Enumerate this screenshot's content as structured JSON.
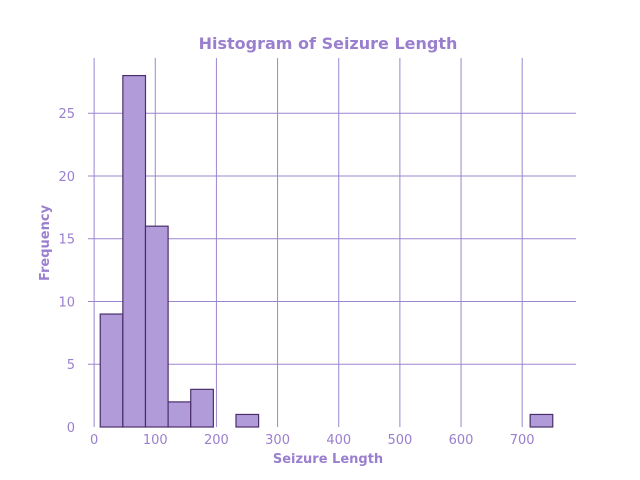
{
  "chart_data": {
    "type": "bar",
    "title": "Histogram of Seizure Length",
    "xlabel": "Seizure Length",
    "ylabel": "Frequency",
    "xlim": [
      -10,
      788
    ],
    "ylim": [
      0,
      29.4
    ],
    "xticks": [
      0,
      100,
      200,
      300,
      400,
      500,
      600,
      700
    ],
    "yticks": [
      0,
      5,
      10,
      15,
      20,
      25
    ],
    "grid": true,
    "bins": [
      {
        "start": 10,
        "end": 47,
        "count": 9
      },
      {
        "start": 47,
        "end": 84,
        "count": 28
      },
      {
        "start": 84,
        "end": 121,
        "count": 16
      },
      {
        "start": 121,
        "end": 158,
        "count": 2
      },
      {
        "start": 158,
        "end": 195,
        "count": 3
      },
      {
        "start": 195,
        "end": 232,
        "count": 0
      },
      {
        "start": 232,
        "end": 269,
        "count": 1
      },
      {
        "start": 269,
        "end": 306,
        "count": 0
      },
      {
        "start": 306,
        "end": 343,
        "count": 0
      },
      {
        "start": 343,
        "end": 380,
        "count": 0
      },
      {
        "start": 380,
        "end": 417,
        "count": 0
      },
      {
        "start": 417,
        "end": 454,
        "count": 0
      },
      {
        "start": 454,
        "end": 491,
        "count": 0
      },
      {
        "start": 491,
        "end": 528,
        "count": 0
      },
      {
        "start": 528,
        "end": 565,
        "count": 0
      },
      {
        "start": 565,
        "end": 602,
        "count": 0
      },
      {
        "start": 602,
        "end": 639,
        "count": 0
      },
      {
        "start": 639,
        "end": 676,
        "count": 0
      },
      {
        "start": 676,
        "end": 713,
        "count": 0
      },
      {
        "start": 713,
        "end": 750,
        "count": 1
      }
    ],
    "colors": {
      "bar_fill": "#b19cd9",
      "bar_edge": "#4b2e6b",
      "grid": "#9b86cf",
      "text": "#9b7fcf"
    }
  }
}
